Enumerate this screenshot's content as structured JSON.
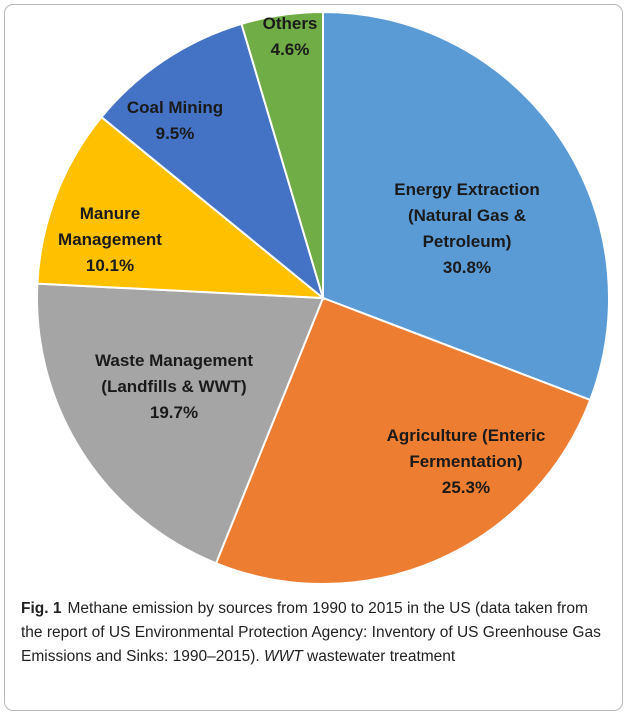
{
  "chart_data": {
    "type": "pie",
    "categories": [
      "Energy Extraction (Natural Gas & Petroleum)",
      "Agriculture (Enteric Fermentation)",
      "Waste Management (Landfills & WWT)",
      "Manure Management",
      "Coal Mining",
      "Others"
    ],
    "values": [
      30.8,
      25.3,
      19.7,
      10.1,
      9.5,
      4.6
    ],
    "value_labels": [
      "30.8%",
      "25.3%",
      "19.7%",
      "10.1%",
      "9.5%",
      "4.6%"
    ],
    "colors": [
      "#5b9bd5",
      "#ed7d31",
      "#a5a5a5",
      "#ffc000",
      "#4472c4",
      "#70ad47"
    ]
  },
  "caption": {
    "label": "Fig. 1",
    "text": "Methane emission by sources from 1990 to 2015 in the US (data taken from the report of US Environmental Protection Agency: Inventory of US Greenhouse Gas Emissions and Sinks: 1990–2015).",
    "abbreviation": "WWT",
    "abbreviation_text": "wastewater treatment"
  }
}
